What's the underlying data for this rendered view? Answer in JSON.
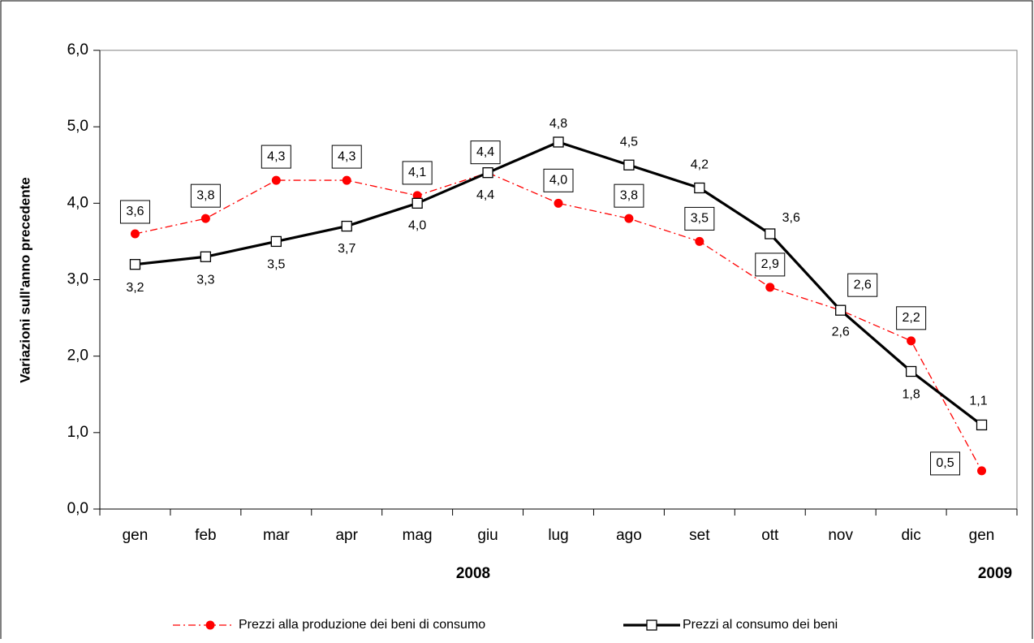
{
  "chart_data": {
    "type": "line",
    "y_label": "Variazioni sull'anno precedente",
    "categories": [
      "gen",
      "feb",
      "mar",
      "apr",
      "mag",
      "giu",
      "lug",
      "ago",
      "set",
      "ott",
      "nov",
      "dic",
      "gen"
    ],
    "year_labels": [
      "2008",
      "2009"
    ],
    "ylim": [
      0,
      6
    ],
    "yticks": [
      {
        "value": 0,
        "label": "0,0"
      },
      {
        "value": 1,
        "label": "1,0"
      },
      {
        "value": 2,
        "label": "2,0"
      },
      {
        "value": 3,
        "label": "3,0"
      },
      {
        "value": 4,
        "label": "4,0"
      },
      {
        "value": 5,
        "label": "5,0"
      },
      {
        "value": 6,
        "label": "6,0"
      }
    ],
    "grid": false,
    "legend": "bottom",
    "series": [
      {
        "name": "Prezzi alla produzione dei beni di consumo",
        "color": "#ff0000",
        "values": [
          3.6,
          3.8,
          4.3,
          4.3,
          4.1,
          4.4,
          4.0,
          3.8,
          3.5,
          2.9,
          2.6,
          2.2,
          0.5
        ],
        "value_labels": [
          "3,6",
          "3,8",
          "4,3",
          "4,3",
          "4,1",
          "4,4",
          "4,0",
          "3,8",
          "3,5",
          "2,9",
          "2,6",
          "2,2",
          "0,5"
        ]
      },
      {
        "name": "Prezzi al consumo dei beni",
        "color": "#000000",
        "values": [
          3.2,
          3.3,
          3.5,
          3.7,
          4.0,
          4.4,
          4.8,
          4.5,
          4.2,
          3.6,
          2.6,
          1.8,
          1.1
        ],
        "value_labels": [
          "3,2",
          "3,3",
          "3,5",
          "3,7",
          "4,0",
          "4,4",
          "4,8",
          "4,5",
          "4,2",
          "3,6",
          "2,6",
          "1,8",
          "1,1"
        ]
      }
    ]
  }
}
